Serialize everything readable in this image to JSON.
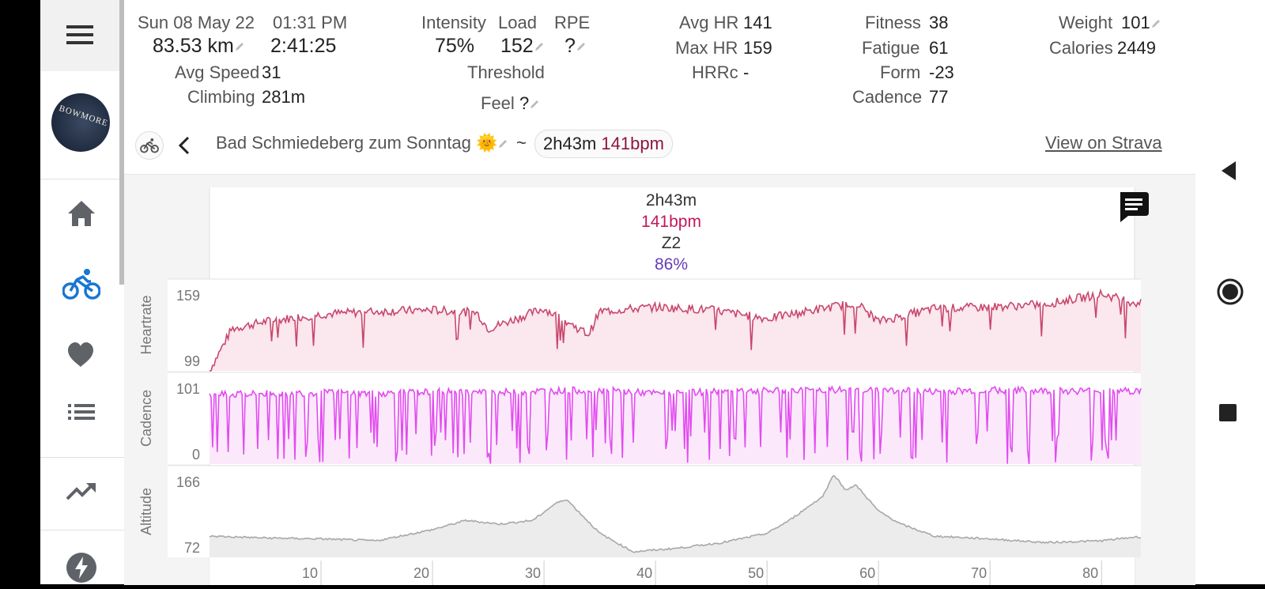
{
  "sidebar": {
    "items": [
      {
        "name": "home",
        "icon": "home-icon"
      },
      {
        "name": "activity",
        "icon": "bike-icon"
      },
      {
        "name": "health",
        "icon": "heart-icon"
      },
      {
        "name": "list",
        "icon": "list-icon"
      },
      {
        "name": "trends",
        "icon": "trend-icon"
      },
      {
        "name": "power",
        "icon": "bolt-icon"
      }
    ],
    "avatar_text": "BOWMORE"
  },
  "summary": {
    "date": "Sun 08 May 22",
    "time": "01:31 PM",
    "distance": "83.53 km",
    "duration": "2:41:25",
    "avg_speed_label": "Avg Speed",
    "avg_speed": "31",
    "climbing_label": "Climbing",
    "climbing": "281m",
    "intensity_label": "Intensity",
    "intensity": "75%",
    "load_label": "Load",
    "load": "152",
    "rpe_label": "RPE",
    "rpe": "?",
    "threshold_label": "Threshold",
    "feel_label": "Feel",
    "feel": "?",
    "avg_hr_label": "Avg HR",
    "avg_hr": "141",
    "max_hr_label": "Max HR",
    "max_hr": "159",
    "hrrc_label": "HRRc",
    "hrrc": "-",
    "fitness_label": "Fitness",
    "fitness": "38",
    "fatigue_label": "Fatigue",
    "fatigue": "61",
    "form_label": "Form",
    "form": "-23",
    "cadence_label": "Cadence",
    "cadence": "77",
    "weight_label": "Weight",
    "weight": "101",
    "calories_label": "Calories",
    "calories": "2449"
  },
  "activity": {
    "title": "Bad Schmiedeberg zum Sonntag 🌞",
    "tilde": "~",
    "chip_time": "2h43m",
    "chip_hr": "141bpm",
    "strava_link": "View on Strava"
  },
  "chart_data": [
    {
      "type": "area",
      "ylabel": "Heartrate",
      "yticks": [
        "159",
        "99"
      ],
      "ylim": [
        99,
        159
      ],
      "color": "#c2185b",
      "summary": {
        "time": "2h43m",
        "hr": "141bpm",
        "zone": "Z2",
        "pct": "86%"
      },
      "x": [
        0,
        2,
        5,
        10,
        15,
        20,
        24,
        25,
        30,
        34,
        35,
        40,
        45,
        50,
        55,
        58,
        60,
        65,
        70,
        75,
        80,
        83
      ],
      "values": [
        99,
        128,
        133,
        138,
        140,
        141,
        139,
        128,
        142,
        124,
        140,
        143,
        141,
        135,
        142,
        146,
        133,
        142,
        143,
        145,
        152,
        146
      ]
    },
    {
      "type": "line",
      "ylabel": "Cadence",
      "yticks": [
        "101",
        "0"
      ],
      "ylim": [
        0,
        101
      ],
      "color": "#e040fb",
      "x": [
        0,
        5,
        10,
        15,
        20,
        25,
        30,
        35,
        40,
        45,
        50,
        55,
        60,
        65,
        70,
        75,
        80,
        83
      ],
      "values": [
        80,
        82,
        83,
        82,
        84,
        83,
        85,
        86,
        82,
        84,
        85,
        86,
        86,
        84,
        86,
        85,
        85,
        85
      ]
    },
    {
      "type": "area",
      "ylabel": "Altitude",
      "yticks": [
        "166",
        "72"
      ],
      "ylim": [
        72,
        166
      ],
      "color": "#9e9e9e",
      "x": [
        0,
        5,
        10,
        15,
        20,
        23,
        26,
        29,
        31,
        32,
        35,
        38,
        42,
        46,
        50,
        52,
        55,
        56,
        57,
        58,
        60,
        62,
        65,
        70,
        75,
        80,
        83
      ],
      "values": [
        95,
        93,
        92,
        90,
        102,
        112,
        108,
        112,
        130,
        135,
        98,
        78,
        82,
        88,
        98,
        112,
        138,
        162,
        145,
        150,
        122,
        108,
        95,
        92,
        88,
        90,
        94
      ]
    }
  ],
  "xaxis": {
    "ticks": [
      "10",
      "20",
      "30",
      "40",
      "50",
      "60",
      "70",
      "80"
    ],
    "max_km": 83.53
  },
  "rightbar": {
    "back": "back-icon",
    "home": "circle-icon",
    "recents": "square-icon"
  }
}
